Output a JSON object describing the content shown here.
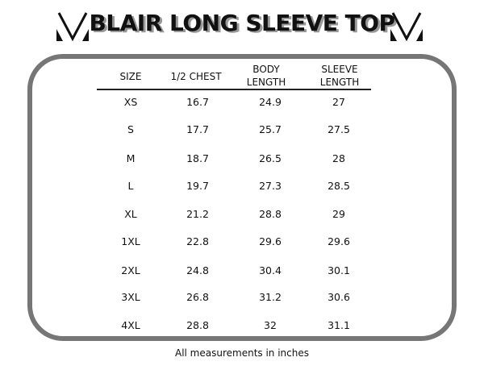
{
  "title": "BLAIR LONG SLEEVE TOP",
  "logo_icon": "v-monogram-icon",
  "table": {
    "headers": [
      [
        "SIZE"
      ],
      [
        "1/2 CHEST"
      ],
      [
        "BODY",
        "LENGTH"
      ],
      [
        "SLEEVE",
        "LENGTH"
      ]
    ],
    "rows": [
      [
        "XS",
        "16.7",
        "24.9",
        "27"
      ],
      [
        "S",
        "17.7",
        "25.7",
        "27.5"
      ],
      [
        "M",
        "18.7",
        "26.5",
        "28"
      ],
      [
        "L",
        "19.7",
        "27.3",
        "28.5"
      ],
      [
        "XL",
        "21.2",
        "28.8",
        "29"
      ],
      [
        "1XL",
        "22.8",
        "29.6",
        "29.6"
      ],
      [
        "2XL",
        "24.8",
        "30.4",
        "30.1"
      ],
      [
        "3XL",
        "26.8",
        "31.2",
        "30.6"
      ],
      [
        "4XL",
        "28.8",
        "32",
        "31.1"
      ]
    ]
  },
  "footer": "All measurements in inches",
  "colors": {
    "frame": "#767676",
    "text": "#111111",
    "title_shadow": "#999999"
  }
}
